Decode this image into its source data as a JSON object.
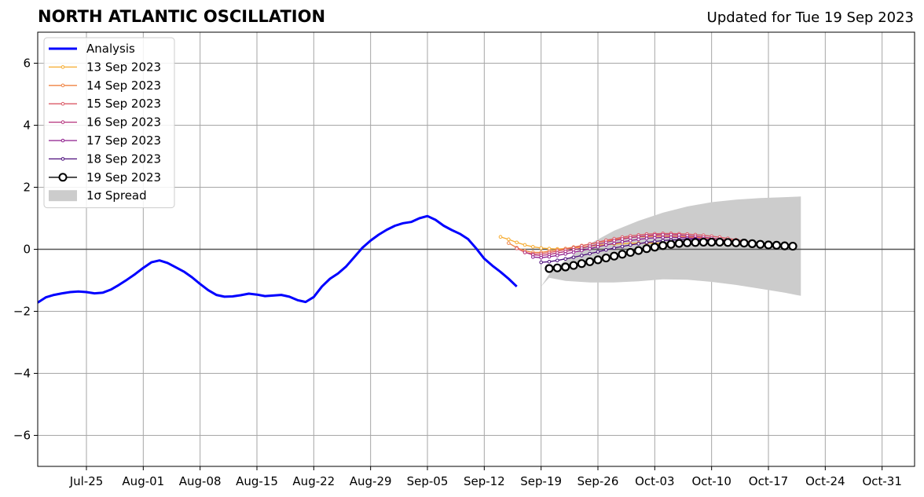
{
  "chart_data": {
    "type": "line",
    "title": "NORTH ATLANTIC OSCILLATION",
    "subtitle": "Updated for Tue 19 Sep 2023",
    "xlim": [
      "2023-07-19",
      "2023-11-04"
    ],
    "ylim": [
      -7,
      7
    ],
    "x_ticks": [
      {
        "date": "2023-07-25",
        "label": "Jul-25"
      },
      {
        "date": "2023-08-01",
        "label": "Aug-01"
      },
      {
        "date": "2023-08-08",
        "label": "Aug-08"
      },
      {
        "date": "2023-08-15",
        "label": "Aug-15"
      },
      {
        "date": "2023-08-22",
        "label": "Aug-22"
      },
      {
        "date": "2023-08-29",
        "label": "Aug-29"
      },
      {
        "date": "2023-09-05",
        "label": "Sep-05"
      },
      {
        "date": "2023-09-12",
        "label": "Sep-12"
      },
      {
        "date": "2023-09-19",
        "label": "Sep-19"
      },
      {
        "date": "2023-09-26",
        "label": "Sep-26"
      },
      {
        "date": "2023-10-03",
        "label": "Oct-03"
      },
      {
        "date": "2023-10-10",
        "label": "Oct-10"
      },
      {
        "date": "2023-10-17",
        "label": "Oct-17"
      },
      {
        "date": "2023-10-24",
        "label": "Oct-24"
      },
      {
        "date": "2023-10-31",
        "label": "Oct-31"
      }
    ],
    "y_ticks": [
      {
        "value": 6,
        "label": "6"
      },
      {
        "value": 4,
        "label": "4"
      },
      {
        "value": 2,
        "label": "2"
      },
      {
        "value": 0,
        "label": "0"
      },
      {
        "value": -2,
        "label": "−2"
      },
      {
        "value": -4,
        "label": "−4"
      },
      {
        "value": -6,
        "label": "−6"
      }
    ],
    "grid": true,
    "legend_position": "top-left",
    "analysis": {
      "name": "Analysis",
      "color": "#0000ff",
      "start": "2023-07-19",
      "values": [
        -1.72,
        -1.55,
        -1.47,
        -1.42,
        -1.38,
        -1.36,
        -1.38,
        -1.42,
        -1.4,
        -1.3,
        -1.15,
        -0.98,
        -0.8,
        -0.6,
        -0.42,
        -0.36,
        -0.44,
        -0.58,
        -0.72,
        -0.9,
        -1.12,
        -1.32,
        -1.47,
        -1.53,
        -1.52,
        -1.48,
        -1.43,
        -1.46,
        -1.51,
        -1.49,
        -1.47,
        -1.53,
        -1.64,
        -1.7,
        -1.54,
        -1.2,
        -0.95,
        -0.78,
        -0.55,
        -0.25,
        0.05,
        0.28,
        0.47,
        0.63,
        0.76,
        0.84,
        0.88,
        1.0,
        1.07,
        0.95,
        0.76,
        0.62,
        0.5,
        0.33,
        0.03,
        -0.3,
        -0.53,
        -0.73,
        -0.95,
        -1.2
      ]
    },
    "spread": {
      "name": "1σ Spread",
      "color": "#cccccc",
      "x": [
        "2023-09-19",
        "2023-09-20",
        "2023-09-22",
        "2023-09-25",
        "2023-09-28",
        "2023-10-01",
        "2023-10-04",
        "2023-10-07",
        "2023-10-10",
        "2023-10-13",
        "2023-10-16",
        "2023-10-19",
        "2023-10-21"
      ],
      "upper": [
        -1.2,
        -0.8,
        -0.35,
        0.18,
        0.6,
        0.92,
        1.18,
        1.38,
        1.52,
        1.6,
        1.65,
        1.68,
        1.7
      ],
      "lower": [
        -1.2,
        -0.92,
        -1.02,
        -1.07,
        -1.07,
        -1.03,
        -0.97,
        -0.98,
        -1.05,
        -1.15,
        -1.27,
        -1.4,
        -1.5
      ]
    },
    "forecasts": [
      {
        "name": "13 Sep 2023",
        "color": "#f6ab2e",
        "start": "2023-09-14",
        "values": [
          0.4,
          0.32,
          0.22,
          0.14,
          0.08,
          0.04,
          0.02,
          0.01,
          0.02,
          0.04,
          0.07,
          0.1,
          0.13,
          0.15,
          0.17,
          0.18,
          0.19,
          0.2,
          0.2,
          0.2,
          0.2,
          0.2,
          0.2,
          0.2,
          0.2,
          0.2,
          0.19,
          0.18,
          0.17,
          0.16,
          0.15,
          0.14,
          0.13,
          0.12
        ]
      },
      {
        "name": "14 Sep 2023",
        "color": "#ef8342",
        "start": "2023-09-15",
        "values": [
          0.2,
          0.05,
          -0.05,
          -0.1,
          -0.1,
          -0.06,
          -0.02,
          0.02,
          0.07,
          0.12,
          0.17,
          0.22,
          0.27,
          0.31,
          0.35,
          0.38,
          0.4,
          0.41,
          0.42,
          0.42,
          0.42,
          0.41,
          0.4,
          0.39,
          0.37,
          0.35,
          0.33,
          0.3,
          0.27,
          0.25,
          0.22,
          0.2,
          0.18
        ]
      },
      {
        "name": "15 Sep 2023",
        "color": "#db5a66",
        "start": "2023-09-16",
        "values": [
          0.03,
          -0.1,
          -0.15,
          -0.14,
          -0.11,
          -0.06,
          -0.01,
          0.05,
          0.11,
          0.17,
          0.23,
          0.29,
          0.34,
          0.39,
          0.43,
          0.46,
          0.49,
          0.5,
          0.51,
          0.51,
          0.5,
          0.49,
          0.47,
          0.45,
          0.42,
          0.39,
          0.35,
          0.31,
          0.27,
          0.23,
          0.2,
          0.17
        ]
      },
      {
        "name": "16 Sep 2023",
        "color": "#b5327c",
        "start": "2023-09-17",
        "values": [
          -0.1,
          -0.18,
          -0.2,
          -0.17,
          -0.12,
          -0.07,
          -0.02,
          0.04,
          0.1,
          0.16,
          0.22,
          0.28,
          0.33,
          0.37,
          0.41,
          0.44,
          0.46,
          0.47,
          0.47,
          0.46,
          0.44,
          0.42,
          0.39,
          0.36,
          0.33,
          0.29,
          0.25,
          0.22,
          0.19,
          0.16,
          0.13
        ]
      },
      {
        "name": "17 Sep 2023",
        "color": "#8e1a8c",
        "start": "2023-09-18",
        "values": [
          -0.25,
          -0.27,
          -0.24,
          -0.2,
          -0.15,
          -0.1,
          -0.04,
          0.02,
          0.08,
          0.14,
          0.19,
          0.24,
          0.28,
          0.32,
          0.35,
          0.37,
          0.38,
          0.39,
          0.38,
          0.37,
          0.35,
          0.33,
          0.3,
          0.27,
          0.24,
          0.21,
          0.18,
          0.15,
          0.13,
          0.11
        ]
      },
      {
        "name": "18 Sep 2023",
        "color": "#4b0c7c",
        "start": "2023-09-19",
        "values": [
          -0.42,
          -0.4,
          -0.36,
          -0.31,
          -0.26,
          -0.2,
          -0.14,
          -0.08,
          -0.02,
          0.04,
          0.09,
          0.14,
          0.18,
          0.22,
          0.25,
          0.28,
          0.3,
          0.31,
          0.32,
          0.32,
          0.31,
          0.3,
          0.28,
          0.26,
          0.24,
          0.21,
          0.19,
          0.16,
          0.14
        ]
      },
      {
        "name": "19 Sep 2023",
        "color": "#000000",
        "start": "2023-09-20",
        "marker": "circle",
        "values": [
          -0.62,
          -0.6,
          -0.57,
          -0.52,
          -0.46,
          -0.4,
          -0.34,
          -0.28,
          -0.22,
          -0.16,
          -0.1,
          -0.04,
          0.02,
          0.07,
          0.12,
          0.16,
          0.19,
          0.21,
          0.22,
          0.23,
          0.23,
          0.23,
          0.22,
          0.21,
          0.2,
          0.18,
          0.16,
          0.14,
          0.13,
          0.11,
          0.1
        ]
      }
    ]
  }
}
